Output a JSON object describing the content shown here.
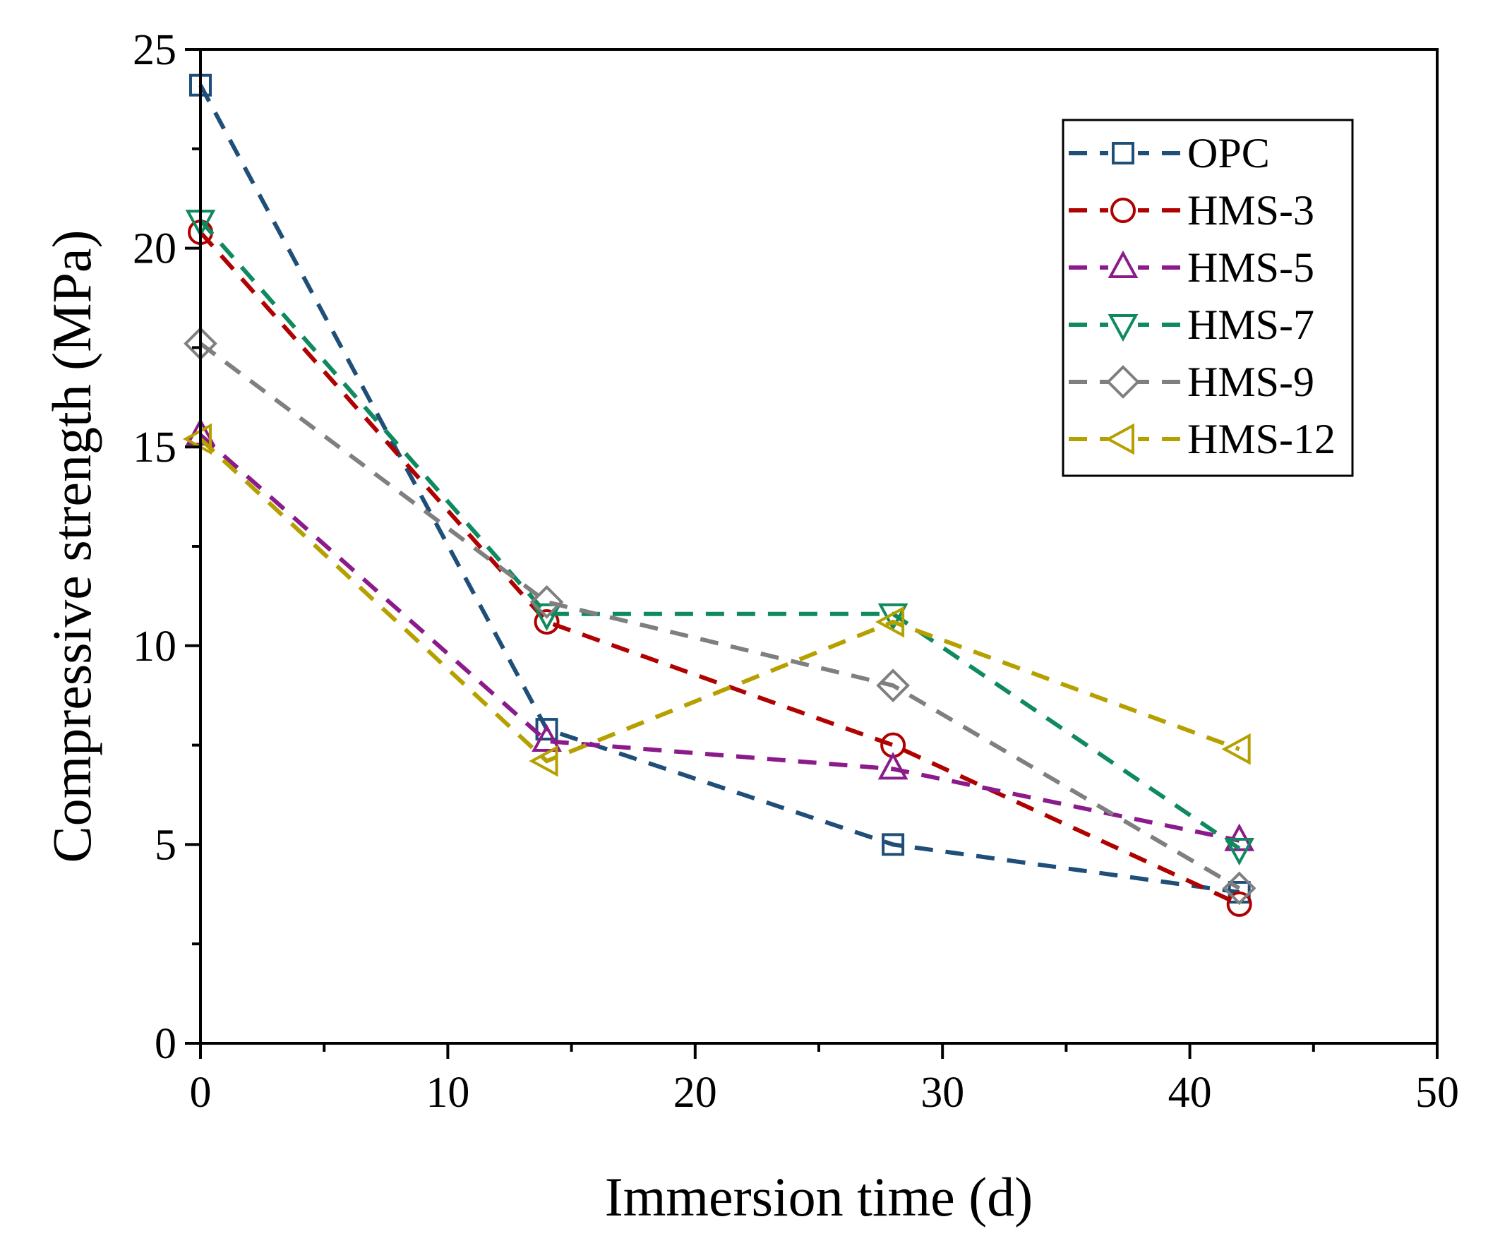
{
  "chart_data": {
    "type": "line",
    "title": "",
    "xlabel": "Immersion time (d)",
    "ylabel": "Compressive strength (MPa)",
    "xlim": [
      0,
      50
    ],
    "ylim": [
      0,
      25
    ],
    "xticks": [
      0,
      10,
      20,
      30,
      40,
      50
    ],
    "yticks": [
      0,
      5,
      10,
      15,
      20,
      25
    ],
    "x_tick_labels": [
      "0",
      "10",
      "20",
      "30",
      "40",
      "50"
    ],
    "y_tick_labels": [
      "0",
      "5",
      "10",
      "15",
      "20",
      "25"
    ],
    "grid": false,
    "legend_position": "top-right",
    "x": [
      0,
      14,
      28,
      42
    ],
    "series": [
      {
        "name": "OPC",
        "marker": "square",
        "color": "#1f4e79",
        "values": [
          24.1,
          7.9,
          5.0,
          3.8
        ]
      },
      {
        "name": "HMS-3",
        "marker": "circle",
        "color": "#b00000",
        "values": [
          20.4,
          10.6,
          7.5,
          3.5
        ]
      },
      {
        "name": "HMS-5",
        "marker": "triangle-up",
        "color": "#8b1a8b",
        "values": [
          15.3,
          7.6,
          6.9,
          5.1
        ]
      },
      {
        "name": "HMS-7",
        "marker": "triangle-down",
        "color": "#0f8a5f",
        "values": [
          20.7,
          10.8,
          10.8,
          4.9
        ]
      },
      {
        "name": "HMS-9",
        "marker": "diamond",
        "color": "#7f7f7f",
        "values": [
          17.6,
          11.1,
          9.0,
          3.9
        ]
      },
      {
        "name": "HMS-12",
        "marker": "triangle-left",
        "color": "#b5a000",
        "values": [
          15.2,
          7.1,
          10.6,
          7.4
        ]
      }
    ]
  }
}
